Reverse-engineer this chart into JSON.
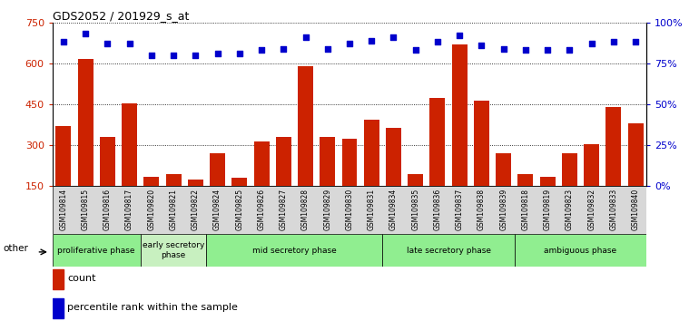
{
  "title": "GDS2052 / 201929_s_at",
  "samples": [
    "GSM109814",
    "GSM109815",
    "GSM109816",
    "GSM109817",
    "GSM109820",
    "GSM109821",
    "GSM109822",
    "GSM109824",
    "GSM109825",
    "GSM109826",
    "GSM109827",
    "GSM109828",
    "GSM109829",
    "GSM109830",
    "GSM109831",
    "GSM109834",
    "GSM109835",
    "GSM109836",
    "GSM109837",
    "GSM109838",
    "GSM109839",
    "GSM109818",
    "GSM109819",
    "GSM109823",
    "GSM109832",
    "GSM109833",
    "GSM109840"
  ],
  "counts": [
    370,
    615,
    330,
    455,
    185,
    195,
    175,
    270,
    180,
    315,
    330,
    590,
    330,
    325,
    395,
    365,
    195,
    475,
    670,
    465,
    270,
    195,
    185,
    270,
    305,
    440,
    380
  ],
  "percentile": [
    88,
    93,
    87,
    87,
    80,
    80,
    80,
    81,
    81,
    83,
    84,
    91,
    84,
    87,
    89,
    91,
    83,
    88,
    92,
    86,
    84,
    83,
    83,
    83,
    87,
    88,
    88
  ],
  "phase_groups": [
    {
      "label": "proliferative phase",
      "start": 0,
      "end": 4,
      "color": "#90ee90"
    },
    {
      "label": "early secretory\nphase",
      "start": 4,
      "end": 7,
      "color": "#c8f0c0"
    },
    {
      "label": "mid secretory phase",
      "start": 7,
      "end": 15,
      "color": "#90ee90"
    },
    {
      "label": "late secretory phase",
      "start": 15,
      "end": 21,
      "color": "#90ee90"
    },
    {
      "label": "ambiguous phase",
      "start": 21,
      "end": 27,
      "color": "#90ee90"
    }
  ],
  "ylim_left": [
    150,
    750
  ],
  "ylim_right": [
    0,
    100
  ],
  "yticks_left": [
    150,
    300,
    450,
    600,
    750
  ],
  "yticks_right": [
    0,
    25,
    50,
    75,
    100
  ],
  "bar_color": "#cc2200",
  "dot_color": "#0000cc",
  "other_label": "other"
}
